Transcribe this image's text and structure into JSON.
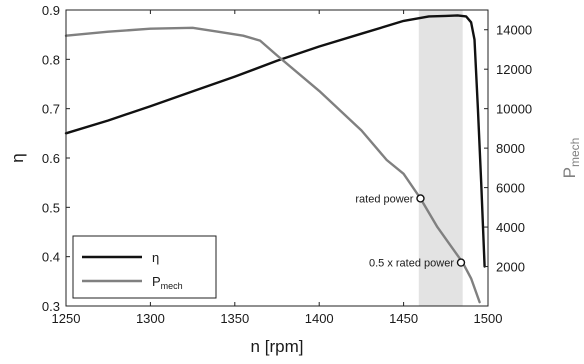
{
  "chart_data": {
    "type": "line",
    "xlabel": "n [rpm]",
    "ylabel_left": "η",
    "ylabel_right": "P",
    "ylabel_right_sub": "mech",
    "xlim": [
      1250,
      1500
    ],
    "ylim_left": [
      0.3,
      0.9
    ],
    "ylim_right": [
      0,
      15000
    ],
    "xticks": [
      1250,
      1300,
      1350,
      1400,
      1450,
      1500
    ],
    "yticks_left": [
      0.3,
      0.4,
      0.5,
      0.6,
      0.7,
      0.8,
      0.9
    ],
    "yticks_right": [
      2000,
      4000,
      6000,
      8000,
      10000,
      12000,
      14000
    ],
    "grid": false,
    "legend_position": "bottom-left",
    "shaded_region": {
      "x": [
        1459,
        1485
      ],
      "color": "#e3e3e3"
    },
    "series": [
      {
        "name": "η",
        "axis": "left",
        "color": "#111111",
        "x": [
          1250,
          1275,
          1300,
          1325,
          1350,
          1375,
          1400,
          1425,
          1450,
          1465,
          1475,
          1482,
          1487,
          1490,
          1492,
          1494,
          1496,
          1498
        ],
        "y": [
          0.65,
          0.676,
          0.705,
          0.735,
          0.765,
          0.797,
          0.826,
          0.852,
          0.878,
          0.887,
          0.888,
          0.889,
          0.887,
          0.875,
          0.84,
          0.7,
          0.55,
          0.38
        ]
      },
      {
        "name": "P",
        "name_sub": "mech",
        "axis": "right",
        "color": "#808080",
        "x": [
          1250,
          1275,
          1300,
          1325,
          1340,
          1355,
          1365,
          1375,
          1400,
          1425,
          1440,
          1450,
          1460,
          1470,
          1480,
          1485,
          1490,
          1495
        ],
        "y": [
          13700,
          13900,
          14050,
          14100,
          13900,
          13700,
          13450,
          12700,
          10900,
          8900,
          7400,
          6700,
          5450,
          4000,
          2800,
          2200,
          1400,
          200
        ]
      }
    ],
    "annotations": [
      {
        "text": "rated power",
        "x": 1460,
        "y": 5450,
        "axis": "right"
      },
      {
        "text": "0.5 x rated power",
        "x": 1484,
        "y": 2200,
        "axis": "right"
      }
    ]
  }
}
